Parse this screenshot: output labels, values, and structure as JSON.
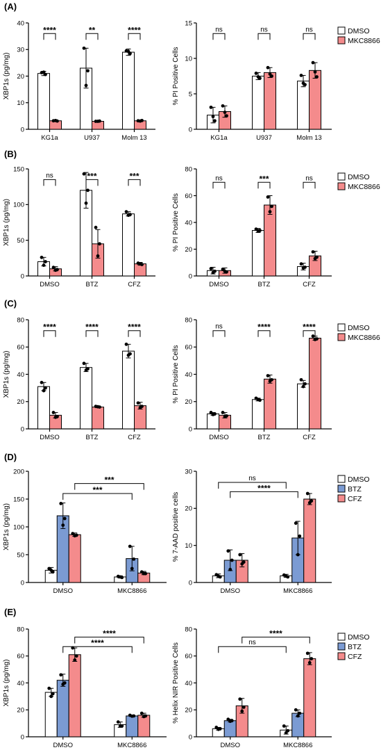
{
  "colors": {
    "DMSO": "#ffffff",
    "MKC8866": "#f48b8c",
    "BTZ": "#7b9bd3",
    "CFZ": "#f48b8c"
  },
  "panel_labels": [
    "(A)",
    "(B)",
    "(C)",
    "(D)",
    "(E)"
  ],
  "chart_data": [
    {
      "panel": "(A)",
      "type": "bar",
      "ylabel": "XBP1s (pg/mg)",
      "ylim": [
        0,
        40
      ],
      "yticks": [
        0,
        10,
        20,
        30,
        40
      ],
      "categories": [
        "KG1a",
        "U937",
        "Molm 13"
      ],
      "series": [
        {
          "color_key": "DMSO",
          "values": [
            21,
            23,
            29
          ],
          "err": [
            0.8,
            7.5,
            1.2
          ],
          "points": [
            [
              21.3,
              20.6,
              21.5
            ],
            [
              30.5,
              22,
              16.5
            ],
            [
              29.5,
              28.5,
              29.3
            ]
          ]
        },
        {
          "color_key": "MKC8866",
          "values": [
            3.2,
            3,
            3.2
          ],
          "err": [
            0.3,
            0.2,
            0.2
          ],
          "points": [
            [
              3.2,
              3.1,
              3.3
            ],
            [
              3.0,
              3.1,
              3.0
            ],
            [
              3.2,
              3.3,
              3.1
            ]
          ]
        }
      ],
      "sig": [
        {
          "label": "****",
          "from": [
            0,
            0
          ],
          "to": [
            0,
            1
          ],
          "y": 36
        },
        {
          "label": "**",
          "from": [
            1,
            0
          ],
          "to": [
            1,
            1
          ],
          "y": 36
        },
        {
          "label": "****",
          "from": [
            2,
            0
          ],
          "to": [
            2,
            1
          ],
          "y": 36
        }
      ]
    },
    {
      "panel": "(A)",
      "type": "bar",
      "ylabel": "% PI Positive Cells",
      "ylim": [
        0,
        15
      ],
      "yticks": [
        0,
        5,
        10,
        15
      ],
      "categories": [
        "KG1a",
        "U937",
        "Molm 13"
      ],
      "series": [
        {
          "color_key": "DMSO",
          "values": [
            2,
            7.5,
            6.8
          ],
          "err": [
            1.1,
            0.5,
            0.8
          ],
          "points": [
            [
              3.1,
              1.2,
              1.8
            ],
            [
              7.9,
              7.2,
              7.4
            ],
            [
              7.6,
              6.3,
              6.5
            ]
          ]
        },
        {
          "color_key": "MKC8866",
          "values": [
            2.5,
            8,
            8.3
          ],
          "err": [
            0.8,
            0.7,
            1.1
          ],
          "points": [
            [
              3.3,
              1.9,
              2.4
            ],
            [
              8.7,
              7.5,
              7.8
            ],
            [
              9.4,
              7.4,
              8.1
            ]
          ]
        }
      ],
      "sig": [
        {
          "label": "ns",
          "from": [
            0,
            0
          ],
          "to": [
            0,
            1
          ],
          "y": 13.5
        },
        {
          "label": "ns",
          "from": [
            1,
            0
          ],
          "to": [
            1,
            1
          ],
          "y": 13.5
        },
        {
          "label": "ns",
          "from": [
            2,
            0
          ],
          "to": [
            2,
            1
          ],
          "y": 13.5
        }
      ],
      "legend": [
        "DMSO",
        "MKC8866"
      ]
    },
    {
      "panel": "(B)",
      "type": "bar",
      "ylabel": "XBP1s (pg/mg)",
      "ylim": [
        0,
        150
      ],
      "yticks": [
        0,
        50,
        100,
        150
      ],
      "categories": [
        "DMSO",
        "BTZ",
        "CFZ"
      ],
      "series": [
        {
          "color_key": "DMSO",
          "values": [
            20,
            120,
            87
          ],
          "err": [
            6,
            25,
            3
          ],
          "points": [
            [
              26,
              20,
              15
            ],
            [
              143,
              120,
              102
            ],
            [
              90,
              86,
              85
            ]
          ]
        },
        {
          "color_key": "MKC8866",
          "values": [
            10,
            45,
            17
          ],
          "err": [
            3,
            20,
            2
          ],
          "points": [
            [
              12,
              9,
              8
            ],
            [
              68,
              45,
              28
            ],
            [
              18,
              16,
              17
            ]
          ]
        }
      ],
      "sig": [
        {
          "label": "ns",
          "from": [
            0,
            0
          ],
          "to": [
            0,
            1
          ],
          "y": 135
        },
        {
          "label": "***",
          "from": [
            1,
            0
          ],
          "to": [
            1,
            1
          ],
          "y": 135
        },
        {
          "label": "***",
          "from": [
            2,
            0
          ],
          "to": [
            2,
            1
          ],
          "y": 135
        }
      ]
    },
    {
      "panel": "(B)",
      "type": "bar",
      "ylabel": "% PI Positive Cells",
      "ylim": [
        0,
        80
      ],
      "yticks": [
        0,
        20,
        40,
        60,
        80
      ],
      "categories": [
        "DMSO",
        "BTZ",
        "CFZ"
      ],
      "series": [
        {
          "color_key": "DMSO",
          "values": [
            4,
            34,
            7
          ],
          "err": [
            2.5,
            1.5,
            2.5
          ],
          "points": [
            [
              5.5,
              3.5,
              2.5
            ],
            [
              35,
              34,
              33.5
            ],
            [
              9,
              6.5,
              6
            ]
          ]
        },
        {
          "color_key": "MKC8866",
          "values": [
            4,
            53,
            15
          ],
          "err": [
            2,
            7,
            3.5
          ],
          "points": [
            [
              5,
              3,
              3.5
            ],
            [
              59,
              52,
              48
            ],
            [
              18,
              14,
              13
            ]
          ]
        }
      ],
      "sig": [
        {
          "label": "ns",
          "from": [
            0,
            0
          ],
          "to": [
            0,
            1
          ],
          "y": 70
        },
        {
          "label": "***",
          "from": [
            1,
            0
          ],
          "to": [
            1,
            1
          ],
          "y": 70
        },
        {
          "label": "ns",
          "from": [
            2,
            0
          ],
          "to": [
            2,
            1
          ],
          "y": 70
        }
      ],
      "legend": [
        "DMSO",
        "MKC8866"
      ]
    },
    {
      "panel": "(C)",
      "type": "bar",
      "ylabel": "XBP1s (pg/mg)",
      "ylim": [
        0,
        80
      ],
      "yticks": [
        0,
        20,
        40,
        60,
        80
      ],
      "categories": [
        "DMSO",
        "BTZ",
        "CFZ"
      ],
      "series": [
        {
          "color_key": "DMSO",
          "values": [
            31,
            45,
            57
          ],
          "err": [
            3,
            3,
            5
          ],
          "points": [
            [
              34,
              30,
              28
            ],
            [
              48,
              44,
              43
            ],
            [
              62,
              55,
              54
            ]
          ]
        },
        {
          "color_key": "MKC8866",
          "values": [
            10,
            16,
            17
          ],
          "err": [
            2,
            0.5,
            2.5
          ],
          "points": [
            [
              12,
              9,
              8.5
            ],
            [
              16.5,
              16,
              16.2
            ],
            [
              19,
              16.5,
              15.5
            ]
          ]
        }
      ],
      "sig": [
        {
          "label": "****",
          "from": [
            0,
            0
          ],
          "to": [
            0,
            1
          ],
          "y": 72
        },
        {
          "label": "****",
          "from": [
            1,
            0
          ],
          "to": [
            1,
            1
          ],
          "y": 72
        },
        {
          "label": "****",
          "from": [
            2,
            0
          ],
          "to": [
            2,
            1
          ],
          "y": 72
        }
      ]
    },
    {
      "panel": "(C)",
      "type": "bar",
      "ylabel": "% PI Positive Cells",
      "ylim": [
        0,
        80
      ],
      "yticks": [
        0,
        20,
        40,
        60,
        80
      ],
      "categories": [
        "DMSO",
        "BTZ",
        "CFZ"
      ],
      "series": [
        {
          "color_key": "DMSO",
          "values": [
            11,
            21.5,
            33
          ],
          "err": [
            1,
            1,
            2.5
          ],
          "points": [
            [
              12,
              11,
              10.5
            ],
            [
              22.5,
              21,
              21.5
            ],
            [
              36,
              33,
              31
            ]
          ]
        },
        {
          "color_key": "MKC8866",
          "values": [
            10,
            36.5,
            66.5
          ],
          "err": [
            2,
            3,
            1.5
          ],
          "points": [
            [
              12,
              9.5,
              9
            ],
            [
              39,
              36,
              35
            ],
            [
              68,
              66,
              65.5
            ]
          ]
        }
      ],
      "sig": [
        {
          "label": "ns",
          "from": [
            0,
            0
          ],
          "to": [
            0,
            1
          ],
          "y": 72
        },
        {
          "label": "****",
          "from": [
            1,
            0
          ],
          "to": [
            1,
            1
          ],
          "y": 72
        },
        {
          "label": "****",
          "from": [
            2,
            0
          ],
          "to": [
            2,
            1
          ],
          "y": 72
        }
      ],
      "legend": [
        "DMSO",
        "MKC8866"
      ]
    },
    {
      "panel": "(D)",
      "type": "bar",
      "ylabel": "XBP1s (pg/mg)",
      "ylim": [
        0,
        200
      ],
      "yticks": [
        0,
        50,
        100,
        150,
        200
      ],
      "categories": [
        "DMSO",
        "MKC8866"
      ],
      "series": [
        {
          "color_key": "DMSO",
          "values": [
            22,
            10
          ],
          "err": [
            5,
            2
          ],
          "points": [
            [
              25,
              19,
              22
            ],
            [
              11,
              9,
              10
            ]
          ]
        },
        {
          "color_key": "BTZ",
          "values": [
            120,
            43
          ],
          "err": [
            23,
            22
          ],
          "points": [
            [
              142,
              115,
              103
            ],
            [
              65,
              42,
              25
            ]
          ]
        },
        {
          "color_key": "CFZ",
          "values": [
            86,
            17
          ],
          "err": [
            3,
            3
          ],
          "points": [
            [
              88,
              85,
              84
            ],
            [
              19,
              16,
              16
            ]
          ]
        }
      ],
      "sig": [
        {
          "label": "***",
          "from": [
            0,
            1
          ],
          "to": [
            1,
            1
          ],
          "y": 160
        },
        {
          "label": "***",
          "from": [
            0,
            2
          ],
          "to": [
            1,
            2
          ],
          "y": 178
        }
      ]
    },
    {
      "panel": "(D)",
      "type": "bar",
      "ylabel": "% 7-AAD positive cells",
      "ylim": [
        0,
        30
      ],
      "yticks": [
        0,
        10,
        20,
        30
      ],
      "categories": [
        "DMSO",
        "MKC8866"
      ],
      "series": [
        {
          "color_key": "DMSO",
          "values": [
            1.8,
            1.8
          ],
          "err": [
            0.5,
            0.4
          ],
          "points": [
            [
              2.1,
              1.5,
              1.7
            ],
            [
              2.0,
              1.5,
              1.7
            ]
          ]
        },
        {
          "color_key": "BTZ",
          "values": [
            6,
            12
          ],
          "err": [
            2.8,
            4.5
          ],
          "points": [
            [
              8.5,
              6,
              3.5
            ],
            [
              16,
              12.5,
              7.5
            ]
          ]
        },
        {
          "color_key": "CFZ",
          "values": [
            6,
            22.5
          ],
          "err": [
            1.8,
            1.5
          ],
          "points": [
            [
              7.5,
              5.5,
              5
            ],
            [
              24,
              22,
              21.5
            ]
          ]
        }
      ],
      "sig": [
        {
          "label": "****",
          "from": [
            0,
            1
          ],
          "to": [
            1,
            1
          ],
          "y": 24.5
        },
        {
          "label": "ns",
          "from": [
            0,
            0
          ],
          "to": [
            1,
            0
          ],
          "y": 27
        }
      ],
      "legend": [
        "DMSO",
        "BTZ",
        "CFZ"
      ]
    },
    {
      "panel": "(E)",
      "type": "bar",
      "ylabel": "XBP1s (pg/mg)",
      "ylim": [
        0,
        80
      ],
      "yticks": [
        0,
        20,
        40,
        60,
        80
      ],
      "categories": [
        "DMSO",
        "MKC8866"
      ],
      "series": [
        {
          "color_key": "DMSO",
          "values": [
            33,
            9
          ],
          "err": [
            3,
            2
          ],
          "points": [
            [
              36,
              32,
              30
            ],
            [
              11,
              8,
              8
            ]
          ]
        },
        {
          "color_key": "BTZ",
          "values": [
            42,
            15.5
          ],
          "err": [
            4.5,
            0.5
          ],
          "points": [
            [
              46,
              40,
              39
            ],
            [
              16,
              15.5,
              15.3
            ]
          ]
        },
        {
          "color_key": "CFZ",
          "values": [
            61,
            16
          ],
          "err": [
            5,
            1.5
          ],
          "points": [
            [
              66,
              60,
              57
            ],
            [
              17.5,
              15.5,
              15
            ]
          ]
        }
      ],
      "sig": [
        {
          "label": "****",
          "from": [
            0,
            1
          ],
          "to": [
            1,
            1
          ],
          "y": 67
        },
        {
          "label": "****",
          "from": [
            0,
            2
          ],
          "to": [
            1,
            2
          ],
          "y": 74
        }
      ]
    },
    {
      "panel": "(E)",
      "type": "bar",
      "ylabel": "% Helix NIR Positive Cells",
      "ylim": [
        0,
        80
      ],
      "yticks": [
        0,
        20,
        40,
        60,
        80
      ],
      "categories": [
        "DMSO",
        "MKC8866"
      ],
      "series": [
        {
          "color_key": "DMSO",
          "values": [
            6,
            5
          ],
          "err": [
            1,
            3
          ],
          "points": [
            [
              7,
              6,
              5.5
            ],
            [
              8,
              4.5,
              3
            ]
          ]
        },
        {
          "color_key": "BTZ",
          "values": [
            12,
            17.5
          ],
          "err": [
            1,
            2.5
          ],
          "points": [
            [
              13,
              12,
              11.5
            ],
            [
              20,
              17.5,
              15.5
            ]
          ]
        },
        {
          "color_key": "CFZ",
          "values": [
            23,
            58
          ],
          "err": [
            5.5,
            4.5
          ],
          "points": [
            [
              28,
              22,
              19
            ],
            [
              62,
              58,
              55
            ]
          ]
        }
      ],
      "sig": [
        {
          "label": "ns",
          "from": [
            0,
            0
          ],
          "to": [
            1,
            0
          ],
          "y": 67
        },
        {
          "label": "****",
          "from": [
            0,
            2
          ],
          "to": [
            1,
            2
          ],
          "y": 74
        }
      ],
      "legend": [
        "DMSO",
        "BTZ",
        "CFZ"
      ]
    }
  ]
}
